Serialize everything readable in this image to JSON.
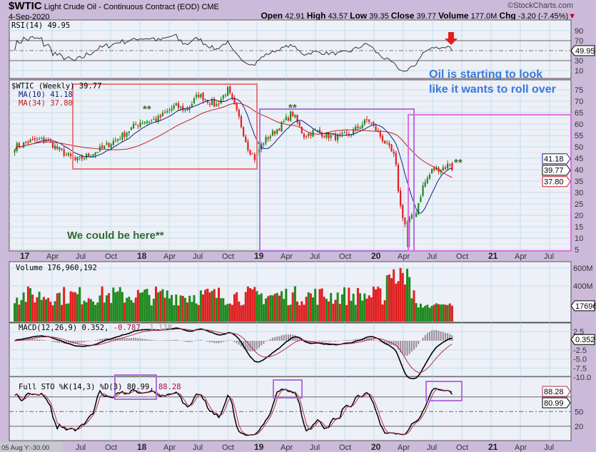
{
  "header": {
    "symbol": "$WTIC",
    "name": "Light Crude Oil - Continuous Contract (EOD)",
    "exchange": "CME",
    "date": "4-Sep-2020",
    "watermark": "©StockCharts.com",
    "open_label": "Open",
    "open": "42.91",
    "high_label": "High",
    "high": "43.57",
    "low_label": "Low",
    "low": "39.35",
    "close_label": "Close",
    "close": "39.77",
    "volume_label": "Volume",
    "volume": "177.0M",
    "chg_label": "Chg",
    "chg": "-3.20 (-7.45%)"
  },
  "colors": {
    "up": "#1e8a1e",
    "down": "#e02020",
    "ma10": "#102080",
    "ma34": "#c02020",
    "bg": "#cbbad9",
    "panel": "#eef0f7",
    "note_blue": "#3b78d8",
    "note_green": "#2f6b2f",
    "box_red": "#e87878",
    "box_purple": "#b070e0",
    "box_magenta": "#e070e0"
  },
  "chart_data": {
    "type": "candlestick",
    "title": "$WTIC Light Crude Oil - Continuous Contract (EOD) Weekly",
    "x_ticks_top": [
      "17",
      "Apr",
      "Jul",
      "Oct",
      "18",
      "Apr",
      "Jul",
      "Oct",
      "19",
      "Apr",
      "Jul",
      "Oct",
      "20",
      "Apr",
      "Jul",
      "Oct",
      "21",
      "Apr",
      "Jul"
    ],
    "x_ticks_bottom": [
      "Jul",
      "Oct",
      "18",
      "Apr",
      "Jul",
      "Oct",
      "19",
      "Apr",
      "Jul",
      "Oct",
      "20",
      "Apr",
      "Jul",
      "Oct",
      "21",
      "Apr",
      "Jul"
    ],
    "x_range_years": [
      2016.9,
      2021.7
    ],
    "price_key_points": {
      "t": [
        2016.93,
        2017.1,
        2017.2,
        2017.3,
        2017.45,
        2017.55,
        2017.7,
        2017.85,
        2018.0,
        2018.15,
        2018.3,
        2018.4,
        2018.5,
        2018.65,
        2018.75,
        2018.85,
        2018.92,
        2018.98,
        2019.05,
        2019.2,
        2019.3,
        2019.4,
        2019.5,
        2019.6,
        2019.7,
        2019.8,
        2019.95,
        2020.05,
        2020.12,
        2020.18,
        2020.22,
        2020.27,
        2020.3,
        2020.35,
        2020.42,
        2020.5,
        2020.6,
        2020.66,
        2020.68
      ],
      "close": [
        50,
        53,
        53,
        49,
        44,
        46,
        50,
        55,
        61,
        62,
        68,
        66,
        73,
        68,
        75,
        62,
        50,
        45,
        52,
        59,
        65,
        55,
        57,
        55,
        54,
        56,
        62,
        55,
        50,
        45,
        25,
        15,
        18,
        20,
        33,
        40,
        41,
        43,
        39.77
      ]
    },
    "price_panel": {
      "label": "$WTIC (Weekly) 39.77",
      "ma10_label": "MA(10) 41.18",
      "ma34_label": "MA(34) 37.80",
      "ylim": [
        3,
        78
      ],
      "y_ticks": [
        "75",
        "70",
        "65",
        "60",
        "55",
        "50",
        "45",
        "40",
        "35",
        "30",
        "25",
        "20",
        "15",
        "10",
        "5"
      ],
      "last": "39.77",
      "ma10_last": "41.18",
      "ma34_last": "37.80"
    },
    "rsi_panel": {
      "label": "RSI(14) 49.95",
      "last": "49.95",
      "y_ticks": [
        "90",
        "70",
        "50",
        "30",
        "10"
      ]
    },
    "volume_panel": {
      "label": "Volume 176,960,192",
      "last": "176960",
      "y_ticks": [
        "600M",
        "400M"
      ],
      "unit_millions": true
    },
    "macd_panel": {
      "label_main": "MACD(12,26,9) 0.352, ",
      "label_signal": "-0.787, ",
      "label_hist": "1.138",
      "last": "0.352",
      "y_ticks": [
        "2.5",
        "-2.5",
        "-5.0",
        "-7.5",
        "-10.0"
      ]
    },
    "sto_panel": {
      "label_main": "Full STO %K(14,3) %D(3) 80.99, ",
      "label_d": "88.28",
      "k_last": "80.99",
      "d_last": "88.28",
      "y_ticks": [
        "50",
        "20"
      ]
    }
  },
  "annotations": {
    "note_top_1": "Oil is starting to look",
    "note_top_2": "like it wants to roll over",
    "note_bottom": "We could be here**",
    "stars": "**"
  },
  "footer": {
    "cursor_readout": "05 Aug Y:-30.00"
  }
}
